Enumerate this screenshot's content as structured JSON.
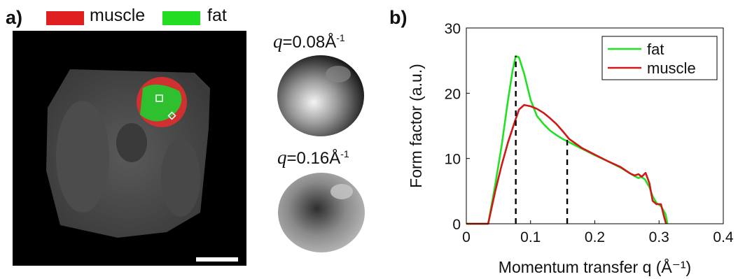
{
  "panel_a": {
    "label": "a)",
    "legend": [
      {
        "label": "muscle",
        "color": "#e02020"
      },
      {
        "label": "fat",
        "color": "#22dd22"
      }
    ],
    "thumbnails": [
      {
        "prefix": "q",
        "value": "=0.08Å",
        "exponent": "-1"
      },
      {
        "prefix": "q",
        "value": "=0.16Å",
        "exponent": "-1"
      }
    ]
  },
  "panel_b": {
    "label": "b)"
  },
  "chart_data": {
    "type": "line",
    "xlabel": "Momentum transfer q (Å⁻¹)",
    "ylabel": "Form factor (a.u.)",
    "xlim": [
      0,
      0.4
    ],
    "ylim": [
      0,
      30
    ],
    "xticks": [
      "0",
      "0.1",
      "0.2",
      "0.3",
      "0.4"
    ],
    "yticks": [
      "0",
      "10",
      "20",
      "30"
    ],
    "legend_position": "top-right",
    "series": [
      {
        "name": "fat",
        "color": "#22e022",
        "x": [
          0.0,
          0.034,
          0.045,
          0.055,
          0.065,
          0.072,
          0.077,
          0.082,
          0.09,
          0.1,
          0.11,
          0.12,
          0.13,
          0.14,
          0.15,
          0.16,
          0.18,
          0.2,
          0.22,
          0.24,
          0.255,
          0.262,
          0.268,
          0.272,
          0.278,
          0.285,
          0.29,
          0.296,
          0.303,
          0.31,
          0.313
        ],
        "y": [
          0.0,
          0.0,
          6.0,
          12.0,
          19.0,
          23.5,
          25.7,
          25.5,
          23.0,
          19.0,
          16.5,
          15.3,
          14.3,
          13.6,
          13.0,
          12.5,
          11.5,
          10.5,
          9.6,
          8.6,
          7.7,
          7.3,
          7.0,
          7.2,
          6.8,
          5.6,
          4.2,
          3.2,
          2.7,
          1.5,
          0.0
        ]
      },
      {
        "name": "muscle",
        "color": "#d01818",
        "x": [
          0.0,
          0.034,
          0.045,
          0.055,
          0.065,
          0.075,
          0.082,
          0.09,
          0.1,
          0.11,
          0.12,
          0.13,
          0.14,
          0.15,
          0.16,
          0.18,
          0.2,
          0.22,
          0.24,
          0.255,
          0.262,
          0.268,
          0.273,
          0.279,
          0.285,
          0.29,
          0.296,
          0.303,
          0.308,
          0.311
        ],
        "y": [
          0.0,
          0.0,
          5.0,
          9.0,
          12.5,
          15.5,
          17.5,
          18.2,
          18.0,
          17.6,
          17.0,
          16.2,
          15.3,
          14.2,
          13.0,
          11.6,
          10.6,
          9.6,
          8.7,
          7.7,
          7.4,
          7.6,
          7.2,
          7.8,
          6.2,
          3.5,
          3.0,
          3.0,
          1.0,
          0.0
        ]
      }
    ],
    "dashed_markers": [
      0.077,
      0.157
    ]
  },
  "scale_bar_color": "#ffffff"
}
